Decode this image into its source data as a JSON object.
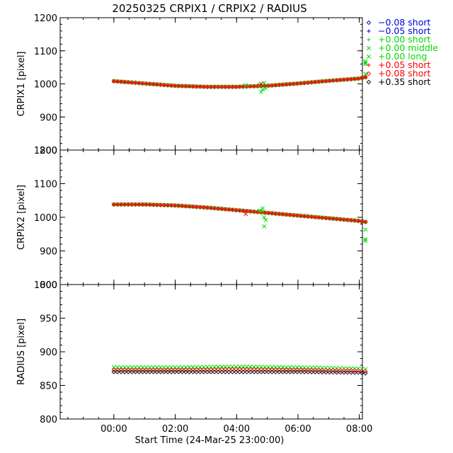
{
  "chart_data": {
    "type": "scatter",
    "title": "20250325 CRPIX1 / CRPIX2 / RADIUS",
    "xlabel": "Start Time (24-Mar-25 23:00:00)",
    "x_unit": "hours since 24-Mar-25 23:00:00",
    "xlim": [
      -0.75,
      9.1
    ],
    "x_ticks": [
      {
        "value": 1,
        "label": "00:00"
      },
      {
        "value": 3,
        "label": "02:00"
      },
      {
        "value": 5,
        "label": "04:00"
      },
      {
        "value": 7,
        "label": "06:00"
      },
      {
        "value": 9,
        "label": "08:00"
      }
    ],
    "panels": [
      {
        "id": "crpix1",
        "ylabel": "CRPIX1 [pixel]",
        "ylim": [
          800,
          1200
        ],
        "y_ticks": [
          800,
          900,
          1000,
          1100,
          1200
        ],
        "curve": {
          "x": [
            1.0,
            2.0,
            3.0,
            4.0,
            5.0,
            6.0,
            7.0,
            8.0,
            9.0,
            9.2
          ],
          "y": [
            1008,
            1001,
            994,
            991,
            991,
            994,
            1001,
            1009,
            1016,
            1020
          ]
        },
        "outliers": [
          {
            "x": 9.2,
            "y": 1064,
            "color": "#00dd00"
          },
          {
            "x": 9.2,
            "y": 1068,
            "color": "#00dd00"
          },
          {
            "x": 9.2,
            "y": 1060,
            "color": "#00dd00"
          },
          {
            "x": 9.2,
            "y": 1030,
            "color": "#00dd00"
          },
          {
            "x": 5.8,
            "y": 976,
            "color": "#00dd00"
          },
          {
            "x": 5.85,
            "y": 983,
            "color": "#00dd00"
          },
          {
            "x": 5.9,
            "y": 1003,
            "color": "#00dd00"
          },
          {
            "x": 5.75,
            "y": 997,
            "color": "#00dd00"
          },
          {
            "x": 5.95,
            "y": 987,
            "color": "#00dd00"
          },
          {
            "x": 5.8,
            "y": 1000,
            "color": "#ff0000"
          },
          {
            "x": 5.3,
            "y": 996,
            "color": "#00dd00"
          }
        ]
      },
      {
        "id": "crpix2",
        "ylabel": "CRPIX2 [pixel]",
        "ylim": [
          800,
          1200
        ],
        "y_ticks": [
          800,
          900,
          1000,
          1100,
          1200
        ],
        "curve": {
          "x": [
            1.0,
            2.0,
            3.0,
            4.0,
            5.0,
            6.0,
            7.0,
            8.0,
            9.0,
            9.2
          ],
          "y": [
            1038,
            1038,
            1035,
            1029,
            1021,
            1013,
            1005,
            997,
            989,
            986
          ]
        },
        "outliers": [
          {
            "x": 9.2,
            "y": 935,
            "color": "#00dd00"
          },
          {
            "x": 9.2,
            "y": 930,
            "color": "#00dd00"
          },
          {
            "x": 9.2,
            "y": 963,
            "color": "#00dd00"
          },
          {
            "x": 5.85,
            "y": 1027,
            "color": "#00dd00"
          },
          {
            "x": 5.8,
            "y": 1018,
            "color": "#00dd00"
          },
          {
            "x": 5.9,
            "y": 1000,
            "color": "#00dd00"
          },
          {
            "x": 5.95,
            "y": 992,
            "color": "#00dd00"
          },
          {
            "x": 5.9,
            "y": 973,
            "color": "#00dd00"
          },
          {
            "x": 5.75,
            "y": 1020,
            "color": "#00dd00"
          },
          {
            "x": 5.3,
            "y": 1010,
            "color": "#ff0000"
          }
        ]
      },
      {
        "id": "radius",
        "ylabel": "RADIUS [pixel]",
        "ylim": [
          800,
          1000
        ],
        "y_ticks": [
          800,
          850,
          900,
          950,
          1000
        ],
        "radius_series": [
          {
            "name": "green",
            "color": "#00dd00",
            "x": [
              1.0,
              3.0,
              5.0,
              7.0,
              9.0,
              9.2
            ],
            "y": [
              877,
              877,
              878,
              877,
              875,
              874
            ]
          },
          {
            "name": "red",
            "color": "#ff0000",
            "x": [
              1.0,
              3.0,
              5.0,
              7.0,
              9.0,
              9.2
            ],
            "y": [
              873,
              873,
              874,
              873,
              872,
              871
            ]
          },
          {
            "name": "black",
            "color": "#000000",
            "x": [
              1.0,
              3.0,
              5.0,
              7.0,
              9.0,
              9.2
            ],
            "y": [
              870,
              870,
              870,
              870,
              869,
              868
            ]
          }
        ]
      }
    ],
    "legend": [
      {
        "symbol": "diamond",
        "color": "#0000dd",
        "offset": "−0.08",
        "label": "short"
      },
      {
        "symbol": "plus",
        "color": "#0000dd",
        "offset": "−0.05",
        "label": "short"
      },
      {
        "symbol": "plus",
        "color": "#00dd00",
        "offset": "+0.00",
        "label": "short"
      },
      {
        "symbol": "cross",
        "color": "#00dd00",
        "offset": "+0.00",
        "label": "middle"
      },
      {
        "symbol": "cross",
        "color": "#00dd00",
        "offset": "+0.00",
        "label": "long"
      },
      {
        "symbol": "plus",
        "color": "#ff0000",
        "offset": "+0.05",
        "label": "short"
      },
      {
        "symbol": "diamond",
        "color": "#ff0000",
        "offset": "+0.08",
        "label": "short"
      },
      {
        "symbol": "diamond",
        "color": "#000000",
        "offset": "+0.35",
        "label": "short"
      }
    ]
  }
}
